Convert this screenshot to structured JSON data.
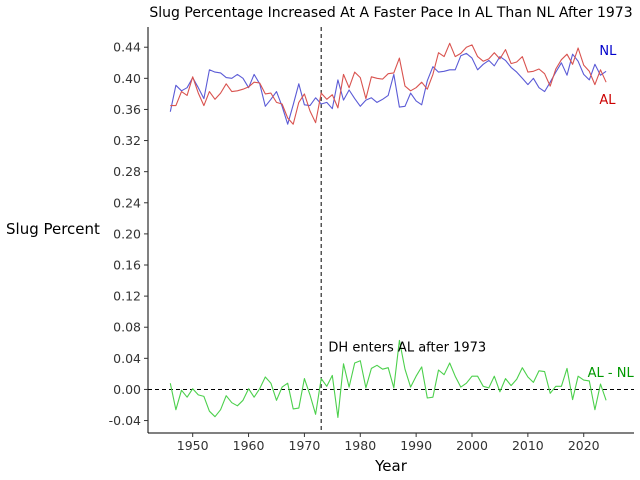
{
  "chart_data": {
    "type": "line",
    "title": "Slug Percentage Increased At A Faster Pace In AL Than NL After 1973",
    "xlabel": "Year",
    "ylabel": "Slug Percent",
    "xlim": [
      1942,
      2029
    ],
    "ylim": [
      -0.056,
      0.466
    ],
    "xticks": [
      1950,
      1960,
      1970,
      1980,
      1990,
      2000,
      2010,
      2020
    ],
    "yticks": [
      -0.04,
      0.0,
      0.04,
      0.08,
      0.12,
      0.16,
      0.2,
      0.24,
      0.28,
      0.32,
      0.36,
      0.4,
      0.44
    ],
    "ytick_labels": [
      "-0.04",
      "0.00",
      "0.04",
      "0.08",
      "0.12",
      "0.16",
      "0.20",
      "0.24",
      "0.28",
      "0.32",
      "0.36",
      "0.40",
      "0.44"
    ],
    "grid": false,
    "x": [
      1946,
      1947,
      1948,
      1949,
      1950,
      1951,
      1952,
      1953,
      1954,
      1955,
      1956,
      1957,
      1958,
      1959,
      1960,
      1961,
      1962,
      1963,
      1964,
      1965,
      1966,
      1967,
      1968,
      1969,
      1970,
      1971,
      1972,
      1973,
      1974,
      1975,
      1976,
      1977,
      1978,
      1979,
      1980,
      1981,
      1982,
      1983,
      1984,
      1985,
      1986,
      1987,
      1988,
      1989,
      1990,
      1991,
      1992,
      1993,
      1994,
      1995,
      1996,
      1997,
      1998,
      1999,
      2000,
      2001,
      2002,
      2003,
      2004,
      2005,
      2006,
      2007,
      2008,
      2009,
      2010,
      2011,
      2012,
      2013,
      2014,
      2015,
      2016,
      2017,
      2018,
      2019,
      2020,
      2021,
      2022,
      2023,
      2024
    ],
    "series": [
      {
        "name": "NL",
        "color": "#5b5bd6",
        "values": [
          0.357,
          0.391,
          0.384,
          0.388,
          0.401,
          0.388,
          0.374,
          0.411,
          0.408,
          0.407,
          0.401,
          0.4,
          0.405,
          0.4,
          0.388,
          0.405,
          0.393,
          0.364,
          0.373,
          0.383,
          0.364,
          0.341,
          0.366,
          0.393,
          0.366,
          0.365,
          0.375,
          0.367,
          0.369,
          0.361,
          0.398,
          0.372,
          0.385,
          0.374,
          0.364,
          0.372,
          0.375,
          0.369,
          0.373,
          0.378,
          0.405,
          0.363,
          0.364,
          0.381,
          0.371,
          0.366,
          0.397,
          0.415,
          0.408,
          0.409,
          0.411,
          0.411,
          0.429,
          0.432,
          0.426,
          0.411,
          0.418,
          0.423,
          0.416,
          0.428,
          0.423,
          0.414,
          0.408,
          0.4,
          0.392,
          0.4,
          0.388,
          0.383,
          0.395,
          0.408,
          0.42,
          0.404,
          0.431,
          0.422,
          0.405,
          0.398,
          0.418,
          0.404,
          0.409
        ]
      },
      {
        "name": "AL",
        "color": "#d9534f",
        "values": [
          0.365,
          0.365,
          0.383,
          0.378,
          0.402,
          0.381,
          0.365,
          0.383,
          0.373,
          0.381,
          0.393,
          0.383,
          0.384,
          0.386,
          0.389,
          0.395,
          0.394,
          0.38,
          0.381,
          0.369,
          0.367,
          0.349,
          0.341,
          0.369,
          0.38,
          0.358,
          0.343,
          0.381,
          0.373,
          0.379,
          0.362,
          0.405,
          0.388,
          0.408,
          0.401,
          0.374,
          0.402,
          0.4,
          0.399,
          0.406,
          0.407,
          0.426,
          0.39,
          0.384,
          0.388,
          0.395,
          0.386,
          0.405,
          0.433,
          0.428,
          0.445,
          0.428,
          0.432,
          0.44,
          0.443,
          0.428,
          0.422,
          0.425,
          0.433,
          0.425,
          0.437,
          0.419,
          0.421,
          0.428,
          0.408,
          0.409,
          0.412,
          0.406,
          0.39,
          0.412,
          0.424,
          0.431,
          0.418,
          0.439,
          0.417,
          0.409,
          0.392,
          0.411,
          0.395
        ]
      },
      {
        "name": "AL - NL",
        "color": "#4cd04c",
        "values": [
          0.008,
          -0.026,
          -0.001,
          -0.01,
          0.001,
          -0.007,
          -0.009,
          -0.028,
          -0.035,
          -0.026,
          -0.008,
          -0.017,
          -0.021,
          -0.014,
          0.001,
          -0.01,
          0.001,
          0.016,
          0.008,
          -0.014,
          0.003,
          0.008,
          -0.025,
          -0.024,
          0.014,
          -0.007,
          -0.032,
          0.014,
          0.004,
          0.018,
          -0.036,
          0.033,
          0.003,
          0.034,
          0.037,
          0.002,
          0.027,
          0.031,
          0.026,
          0.028,
          0.002,
          0.063,
          0.026,
          0.003,
          0.017,
          0.029,
          -0.011,
          -0.01,
          0.025,
          0.019,
          0.034,
          0.017,
          0.003,
          0.008,
          0.017,
          0.017,
          0.004,
          0.002,
          0.017,
          -0.003,
          0.014,
          0.005,
          0.013,
          0.028,
          0.016,
          0.009,
          0.024,
          0.023,
          -0.005,
          0.004,
          0.004,
          0.027,
          -0.013,
          0.017,
          0.012,
          0.011,
          -0.026,
          0.007,
          -0.014
        ]
      }
    ],
    "reference_lines": [
      {
        "axis": "x",
        "value": 1973,
        "style": "dashed",
        "color": "#000000"
      },
      {
        "axis": "y",
        "value": 0.0,
        "style": "dashed",
        "color": "#000000"
      }
    ],
    "annotations": [
      {
        "text": "DH enters AL after 1973",
        "x": 1974.3,
        "y": 0.049,
        "color": "#000000",
        "anchor": "start"
      },
      {
        "text": "NL",
        "x": 2022.8,
        "y": 0.43,
        "color": "#0000cc",
        "anchor": "start"
      },
      {
        "text": "AL",
        "x": 2022.8,
        "y": 0.367,
        "color": "#cc0000",
        "anchor": "start"
      },
      {
        "text": "AL - NL",
        "x": 2020.7,
        "y": 0.016,
        "color": "#009900",
        "anchor": "start"
      }
    ]
  }
}
